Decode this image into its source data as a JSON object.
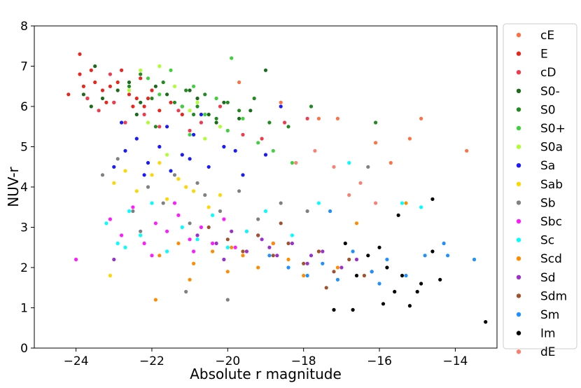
{
  "chart_data": {
    "type": "scatter",
    "title": "",
    "xlabel": "Absolute r magnitude",
    "ylabel": "NUV-r",
    "xlim": [
      -25.1,
      -12.9
    ],
    "ylim": [
      0,
      8
    ],
    "x_ticks": [
      -24,
      -22,
      -20,
      -18,
      -16,
      -14
    ],
    "x_tick_labels": [
      "−24",
      "−22",
      "−20",
      "−18",
      "−16",
      "−14"
    ],
    "y_ticks": [
      0,
      1,
      2,
      3,
      4,
      5,
      6,
      7,
      8
    ],
    "y_tick_labels": [
      "0",
      "1",
      "2",
      "3",
      "4",
      "5",
      "6",
      "7",
      "8"
    ],
    "grid": false,
    "legend_position": "outside-right",
    "series": [
      {
        "name": "cE",
        "color": "#ff7043",
        "x": [
          -19.7,
          -18.6,
          -17.6,
          -17.1,
          -16.1,
          -15.7,
          -15.2,
          -14.9,
          -13.7
        ],
        "y": [
          6.6,
          6.1,
          5.7,
          5.7,
          5.1,
          4.6,
          5.2,
          5.7,
          4.9
        ]
      },
      {
        "name": "E",
        "color": "#e8261e",
        "x": [
          -24.2,
          -23.9,
          -23.8,
          -23.7,
          -23.5,
          -23.3,
          -23.1,
          -23.0,
          -22.8,
          -22.6,
          -22.4,
          -22.2,
          -22.0,
          -21.8,
          -21.5,
          -21.2,
          -23.9,
          -23.6,
          -23.2,
          -22.9,
          -22.5,
          -22.3,
          -22.1
        ],
        "y": [
          6.3,
          6.8,
          6.5,
          6.2,
          6.6,
          6.4,
          6.5,
          6.1,
          6.9,
          6.3,
          6.2,
          6.0,
          6.4,
          5.9,
          6.1,
          5.8,
          7.3,
          6.9,
          6.1,
          6.6,
          6.0,
          6.7,
          6.2
        ]
      },
      {
        "name": "cD",
        "color": "#f03a4e",
        "x": [
          -23.7,
          -23.4,
          -23.0,
          -22.7,
          -22.2,
          -21.8,
          -21.3,
          -20.7,
          -20.2,
          -19.6,
          -19.1,
          -18.5,
          -17.9,
          -23.1,
          -21.0
        ],
        "y": [
          6.2,
          5.9,
          6.1,
          5.6,
          5.8,
          5.5,
          5.9,
          5.6,
          6.0,
          5.3,
          5.2,
          5.6,
          5.7,
          6.8,
          5.4
        ]
      },
      {
        "name": "S0-",
        "color": "#1a6b1a",
        "x": [
          -23.8,
          -23.5,
          -23.3,
          -22.9,
          -22.6,
          -22.3,
          -21.9,
          -21.6,
          -21.2,
          -20.8,
          -20.5,
          -20.1,
          -19.7,
          -19.4,
          -19.0,
          -23.6,
          -22.4,
          -21.0,
          -20.3
        ],
        "y": [
          6.3,
          7.0,
          6.2,
          6.4,
          6.6,
          6.1,
          6.5,
          6.3,
          6.0,
          6.2,
          5.8,
          6.1,
          5.7,
          5.9,
          6.9,
          6.0,
          5.8,
          6.4,
          5.6
        ]
      },
      {
        "name": "S0",
        "color": "#218a21",
        "x": [
          -22.6,
          -22.3,
          -22.0,
          -21.7,
          -21.4,
          -21.1,
          -20.8,
          -20.6,
          -20.3,
          -20.0,
          -19.7,
          -19.3,
          -18.9,
          -18.4,
          -17.8,
          -16.1,
          -21.9,
          -20.9
        ],
        "y": [
          6.5,
          6.8,
          6.2,
          6.6,
          6.1,
          6.4,
          6.0,
          6.3,
          5.7,
          6.1,
          5.9,
          6.2,
          5.6,
          5.5,
          6.0,
          5.6,
          5.5,
          5.8
        ]
      },
      {
        "name": "S0+",
        "color": "#3fcf3f",
        "x": [
          -22.1,
          -21.8,
          -21.5,
          -21.2,
          -20.9,
          -20.6,
          -20.3,
          -20.0,
          -19.6,
          -19.2,
          -18.8,
          -18.3,
          -21.0,
          -19.9
        ],
        "y": [
          6.7,
          6.3,
          6.9,
          6.0,
          6.5,
          5.8,
          6.2,
          5.4,
          5.7,
          5.1,
          4.9,
          4.6,
          5.3,
          7.2
        ]
      },
      {
        "name": "S0a",
        "color": "#adff2f",
        "x": [
          -22.6,
          -22.3,
          -22.1,
          -21.8,
          -21.4,
          -21.0,
          -20.6,
          -21.6,
          -20.8,
          -20.2
        ],
        "y": [
          6.4,
          6.9,
          5.6,
          7.0,
          6.5,
          5.9,
          5.2,
          4.8,
          6.1,
          5.5
        ]
      },
      {
        "name": "Sa",
        "color": "#1a1aff",
        "x": [
          -23.0,
          -22.7,
          -22.4,
          -22.1,
          -21.8,
          -21.5,
          -21.2,
          -20.9,
          -20.5,
          -20.1,
          -19.6,
          -19.0,
          -18.6,
          -22.8,
          -22.2,
          -21.6,
          -21.0,
          -20.7,
          -19.8
        ],
        "y": [
          4.5,
          4.9,
          5.2,
          4.6,
          5.0,
          4.4,
          4.8,
          5.3,
          4.5,
          5.0,
          4.3,
          4.8,
          6.0,
          5.6,
          4.3,
          5.5,
          4.7,
          5.8,
          4.9
        ]
      },
      {
        "name": "Sab",
        "color": "#ffd700",
        "x": [
          -23.0,
          -22.7,
          -22.4,
          -22.0,
          -21.6,
          -21.3,
          -20.9,
          -20.5,
          -20.2,
          -21.8,
          -21.1,
          -23.1
        ],
        "y": [
          4.1,
          4.4,
          3.9,
          4.3,
          3.7,
          4.2,
          3.9,
          3.5,
          3.8,
          4.6,
          4.0,
          1.8
        ]
      },
      {
        "name": "Sb",
        "color": "#808080",
        "x": [
          -23.3,
          -22.9,
          -22.5,
          -22.1,
          -21.7,
          -21.4,
          -21.0,
          -20.6,
          -20.2,
          -19.7,
          -19.2,
          -18.6,
          -17.9,
          -16.3,
          -20.0,
          -21.1,
          -22.3,
          -20.8
        ],
        "y": [
          4.3,
          4.7,
          3.4,
          4.0,
          3.6,
          4.3,
          3.1,
          3.8,
          3.4,
          3.9,
          3.2,
          3.6,
          3.4,
          4.5,
          1.2,
          1.4,
          2.9,
          4.1
        ]
      },
      {
        "name": "Sbc",
        "color": "#ff1aff",
        "x": [
          -23.1,
          -22.8,
          -22.5,
          -22.2,
          -21.9,
          -21.6,
          -21.3,
          -21.0,
          -20.7,
          -20.4,
          -20.1,
          -19.8,
          -19.5,
          -19.2,
          -18.8,
          -24.0,
          -22.0,
          -21.4,
          -20.9
        ],
        "y": [
          3.2,
          2.8,
          3.5,
          2.6,
          3.1,
          2.9,
          3.3,
          2.7,
          3.0,
          2.6,
          3.2,
          2.5,
          2.9,
          2.8,
          2.6,
          2.2,
          2.3,
          3.6,
          2.4
        ]
      },
      {
        "name": "Sc",
        "color": "#00ffff",
        "x": [
          -23.2,
          -22.9,
          -22.6,
          -22.3,
          -22.0,
          -21.6,
          -21.2,
          -20.8,
          -20.4,
          -20.0,
          -19.5,
          -19.0,
          -18.3,
          -17.6,
          -15.4,
          -14.9,
          -16.8,
          -22.7
        ],
        "y": [
          3.1,
          2.6,
          3.4,
          2.8,
          3.6,
          2.4,
          3.0,
          2.7,
          3.3,
          2.5,
          2.9,
          3.4,
          2.8,
          3.6,
          3.6,
          3.5,
          4.6,
          2.5
        ]
      },
      {
        "name": "Scd",
        "color": "#ff8c00",
        "x": [
          -21.8,
          -21.3,
          -20.9,
          -20.4,
          -20.0,
          -19.6,
          -19.2,
          -18.8,
          -18.4,
          -18.0,
          -17.6,
          -17.1,
          -21.9,
          -21.0,
          -19.9,
          -16.6,
          -15.3
        ],
        "y": [
          2.3,
          2.6,
          2.1,
          2.4,
          1.9,
          2.3,
          2.0,
          2.6,
          2.2,
          1.8,
          2.4,
          2.0,
          1.2,
          1.7,
          2.5,
          3.1,
          3.6
        ]
      },
      {
        "name": "Sd",
        "color": "#9932cc",
        "x": [
          -20.8,
          -20.3,
          -19.9,
          -19.5,
          -19.1,
          -18.7,
          -18.3,
          -17.9,
          -17.5,
          -17.0,
          -16.6,
          -16.2,
          -20.1,
          -18.9,
          -17.8,
          -23.0
        ],
        "y": [
          2.8,
          2.6,
          2.9,
          2.4,
          2.7,
          2.3,
          2.6,
          2.1,
          2.4,
          2.0,
          2.2,
          1.9,
          2.2,
          2.5,
          2.3,
          2.2
        ]
      },
      {
        "name": "Sdm",
        "color": "#a0522d",
        "x": [
          -20.5,
          -20.0,
          -19.6,
          -19.2,
          -18.8,
          -18.4,
          -18.0,
          -17.6,
          -17.2,
          -16.8,
          -16.4,
          -18.6,
          -17.4
        ],
        "y": [
          3.0,
          2.7,
          2.4,
          2.8,
          2.3,
          2.6,
          2.1,
          2.4,
          1.9,
          2.2,
          1.8,
          3.1,
          1.5
        ]
      },
      {
        "name": "Sm",
        "color": "#1e90ff",
        "x": [
          -18.9,
          -18.4,
          -17.9,
          -17.5,
          -17.1,
          -16.7,
          -16.2,
          -15.8,
          -15.3,
          -14.8,
          -14.3,
          -17.3,
          -16.0,
          -14.2,
          -13.5
        ],
        "y": [
          2.3,
          2.0,
          1.8,
          2.1,
          1.7,
          2.4,
          1.9,
          2.2,
          1.8,
          2.3,
          2.6,
          3.4,
          1.6,
          2.3,
          2.2
        ]
      },
      {
        "name": "Im",
        "color": "#000000",
        "x": [
          -17.2,
          -16.7,
          -16.3,
          -16.0,
          -15.8,
          -15.6,
          -15.4,
          -15.2,
          -14.9,
          -14.6,
          -14.4,
          -15.9,
          -16.6,
          -15.0,
          -14.6,
          -13.2,
          -16.9,
          -15.5
        ],
        "y": [
          0.95,
          0.95,
          2.3,
          2.5,
          2.0,
          1.4,
          1.8,
          1.05,
          1.6,
          2.4,
          1.7,
          1.1,
          1.8,
          1.4,
          3.7,
          0.65,
          2.6,
          3.3
        ]
      },
      {
        "name": "dE",
        "color": "#fa8072",
        "x": [
          -18.2,
          -17.7,
          -17.2,
          -16.8,
          -16.5,
          -16.1
        ],
        "y": [
          4.6,
          4.9,
          4.5,
          3.8,
          4.1,
          3.6
        ]
      }
    ]
  }
}
